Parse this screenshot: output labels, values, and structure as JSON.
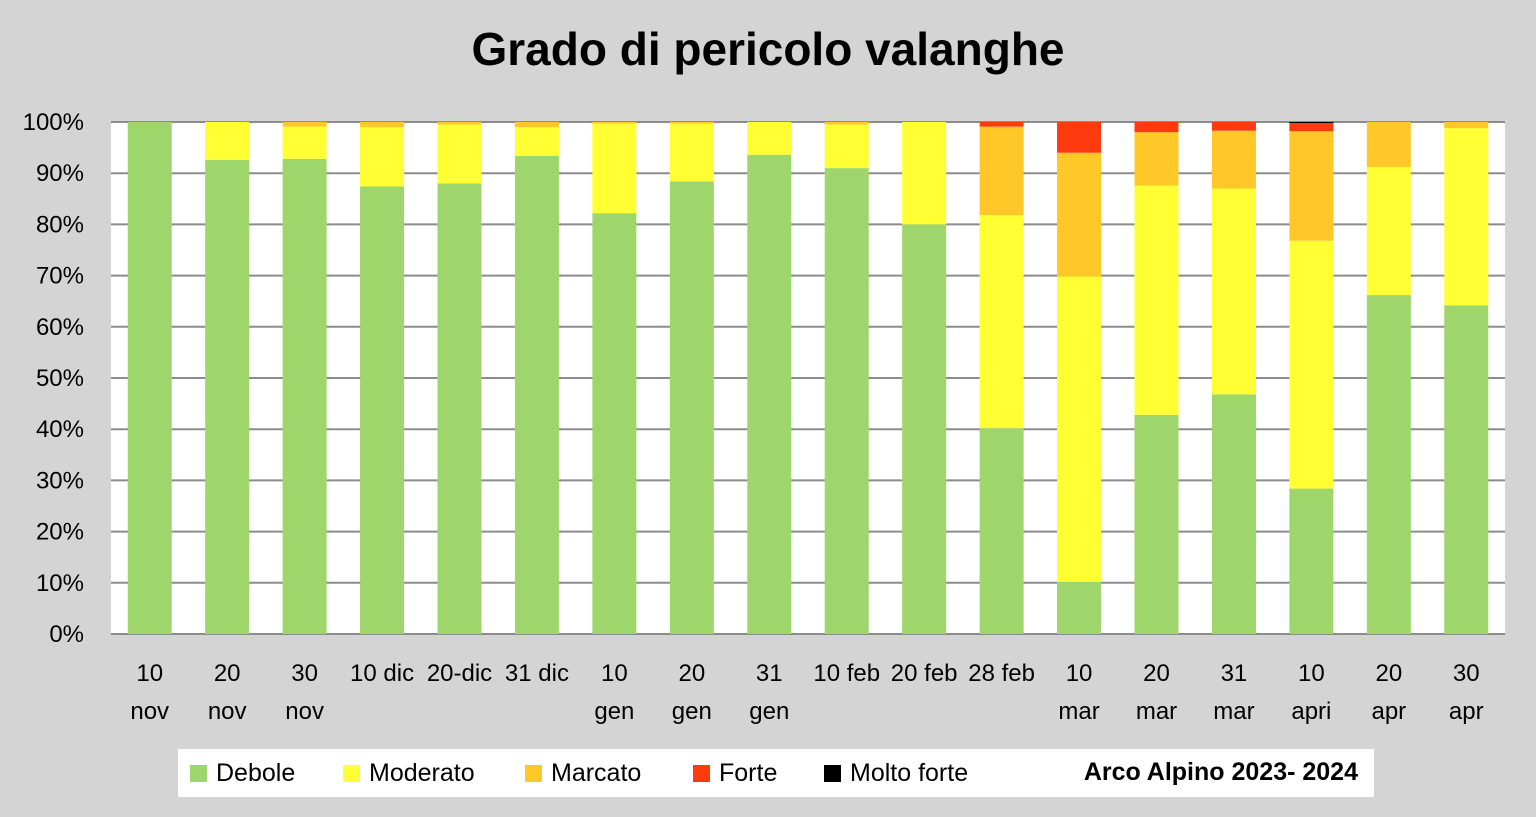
{
  "chart_data": {
    "type": "bar",
    "stacked": true,
    "title": "Grado di pericolo valanghe",
    "ylim": [
      0,
      100
    ],
    "yticks": [
      "0%",
      "10%",
      "20%",
      "30%",
      "40%",
      "50%",
      "60%",
      "70%",
      "80%",
      "90%",
      "100%"
    ],
    "grid": true,
    "legend_position": "bottom",
    "legend_note": "Arco Alpino 2023- 2024",
    "categories": [
      [
        "10",
        "nov"
      ],
      [
        "20",
        "nov"
      ],
      [
        "30",
        "nov"
      ],
      [
        "10 dic"
      ],
      [
        "20-dic"
      ],
      [
        "31 dic"
      ],
      [
        "10",
        "gen"
      ],
      [
        "20",
        "gen"
      ],
      [
        "31",
        "gen"
      ],
      [
        "10 feb"
      ],
      [
        "20 feb"
      ],
      [
        "28 feb"
      ],
      [
        "10",
        "mar"
      ],
      [
        "20",
        "mar"
      ],
      [
        "31",
        "mar"
      ],
      [
        "10",
        "apri"
      ],
      [
        "20",
        "apr"
      ],
      [
        "30",
        "apr"
      ]
    ],
    "series": [
      {
        "name": "Debole",
        "color": "#9fd66b",
        "values": [
          100,
          92.6,
          92.8,
          87.4,
          88,
          93.4,
          82.2,
          88.4,
          93.6,
          91,
          80,
          40.2,
          10.2,
          42.8,
          46.8,
          28.4,
          66.2,
          64.2
        ]
      },
      {
        "name": "Moderato",
        "color": "#ffff33",
        "values": [
          0,
          7.4,
          6.3,
          11.6,
          11.5,
          5.6,
          17.5,
          11.3,
          6.4,
          8.5,
          20,
          41.6,
          59.6,
          44.8,
          40.2,
          48.4,
          25,
          34.6
        ]
      },
      {
        "name": "Marcato",
        "color": "#ffc828",
        "values": [
          0,
          0,
          0.9,
          1,
          0.5,
          1,
          0.3,
          0.3,
          0,
          0.5,
          0,
          17.3,
          24.2,
          10.4,
          11.3,
          21.4,
          8.8,
          1.2
        ]
      },
      {
        "name": "Forte",
        "color": "#ff3a0f",
        "values": [
          0,
          0,
          0,
          0,
          0,
          0,
          0,
          0,
          0,
          0,
          0,
          0.9,
          6,
          2,
          1.7,
          1.6,
          0,
          0
        ]
      },
      {
        "name": "Molto forte",
        "color": "#000000",
        "values": [
          0,
          0,
          0,
          0,
          0,
          0,
          0,
          0,
          0,
          0,
          0,
          0,
          0,
          0,
          0,
          0.2,
          0,
          0
        ]
      }
    ]
  },
  "colors": {
    "background": "#d4d4d4",
    "plot_background": "#ffffff",
    "grid": "#8c8c8c"
  }
}
